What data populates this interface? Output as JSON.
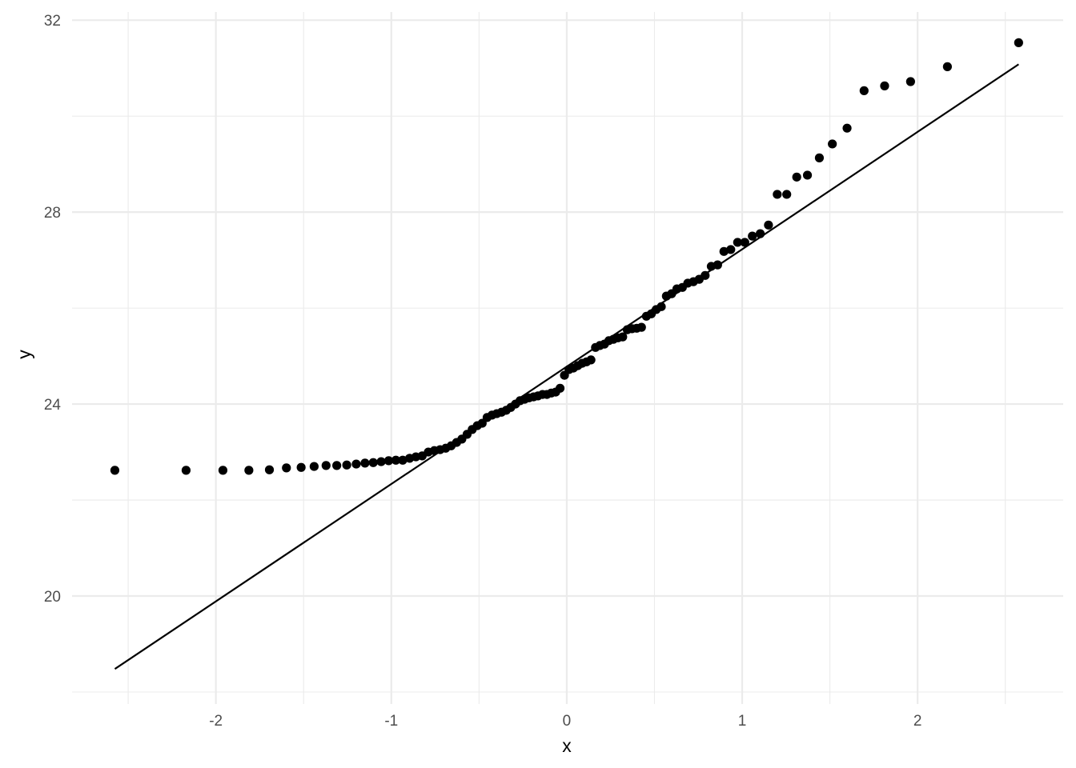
{
  "chart_data": {
    "type": "scatter",
    "title": "",
    "xlabel": "x",
    "ylabel": "y",
    "xlim": [
      -2.82,
      2.83
    ],
    "ylim": [
      17.75,
      32.17
    ],
    "grid": true,
    "x_major_ticks": [
      -2,
      -1,
      0,
      1,
      2
    ],
    "x_minor_ticks": [
      -2.5,
      -1.5,
      -0.5,
      0.5,
      1.5,
      2.5
    ],
    "y_major_ticks": [
      20,
      24,
      28,
      32
    ],
    "y_minor_ticks": [
      18,
      22,
      26,
      30
    ],
    "x_tick_labels": [
      "-2",
      "-1",
      "0",
      "1",
      "2"
    ],
    "y_tick_labels": [
      "20",
      "24",
      "28",
      "32"
    ],
    "points": {
      "x": [
        -2.576,
        -2.17,
        -1.96,
        -1.812,
        -1.695,
        -1.598,
        -1.514,
        -1.44,
        -1.372,
        -1.311,
        -1.254,
        -1.2,
        -1.15,
        -1.103,
        -1.058,
        -1.015,
        -0.974,
        -0.935,
        -0.896,
        -0.86,
        -0.824,
        -0.789,
        -0.755,
        -0.722,
        -0.69,
        -0.659,
        -0.628,
        -0.598,
        -0.568,
        -0.539,
        -0.51,
        -0.482,
        -0.454,
        -0.426,
        -0.399,
        -0.372,
        -0.345,
        -0.319,
        -0.292,
        -0.266,
        -0.24,
        -0.215,
        -0.189,
        -0.164,
        -0.138,
        -0.113,
        -0.088,
        -0.063,
        -0.038,
        -0.013,
        0.013,
        0.038,
        0.063,
        0.088,
        0.113,
        0.138,
        0.164,
        0.189,
        0.215,
        0.24,
        0.266,
        0.292,
        0.319,
        0.345,
        0.372,
        0.399,
        0.426,
        0.454,
        0.482,
        0.51,
        0.539,
        0.568,
        0.598,
        0.628,
        0.659,
        0.69,
        0.722,
        0.755,
        0.789,
        0.824,
        0.86,
        0.896,
        0.935,
        0.974,
        1.015,
        1.058,
        1.103,
        1.15,
        1.2,
        1.254,
        1.311,
        1.372,
        1.44,
        1.514,
        1.598,
        1.695,
        1.812,
        1.96,
        2.17,
        2.576
      ],
      "y": [
        22.62,
        22.62,
        22.62,
        22.62,
        22.63,
        22.67,
        22.68,
        22.7,
        22.72,
        22.72,
        22.73,
        22.75,
        22.77,
        22.78,
        22.8,
        22.82,
        22.83,
        22.83,
        22.87,
        22.9,
        22.92,
        23.0,
        23.03,
        23.05,
        23.08,
        23.13,
        23.2,
        23.27,
        23.37,
        23.47,
        23.55,
        23.6,
        23.72,
        23.77,
        23.8,
        23.83,
        23.87,
        23.93,
        24.0,
        24.07,
        24.1,
        24.13,
        24.15,
        24.17,
        24.2,
        24.2,
        24.23,
        24.25,
        24.33,
        24.6,
        24.72,
        24.75,
        24.8,
        24.85,
        24.88,
        24.92,
        25.18,
        25.22,
        25.25,
        25.32,
        25.35,
        25.38,
        25.4,
        25.55,
        25.57,
        25.58,
        25.6,
        25.83,
        25.88,
        25.97,
        26.03,
        26.25,
        26.3,
        26.4,
        26.43,
        26.52,
        26.55,
        26.6,
        26.68,
        26.87,
        26.9,
        27.18,
        27.22,
        27.37,
        27.37,
        27.5,
        27.55,
        27.73,
        28.37,
        28.37,
        28.73,
        28.77,
        29.13,
        29.42,
        29.75,
        30.53,
        30.63,
        30.72,
        31.03,
        31.53
      ],
      "color": "#000000"
    },
    "reference_line": {
      "x": [
        -2.576,
        2.576
      ],
      "y": [
        18.48,
        31.08
      ],
      "color": "#000000"
    },
    "grid_color": "#ebebeb"
  }
}
